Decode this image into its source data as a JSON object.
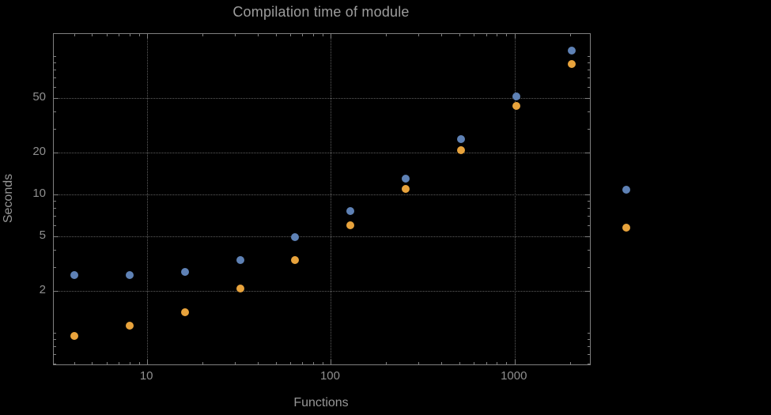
{
  "chart_data": {
    "type": "scatter",
    "title": "Compilation time of module",
    "xlabel": "Functions",
    "ylabel": "Seconds",
    "x_scale": "log",
    "y_scale": "log",
    "grid": "dotted lines at major ticks",
    "x": [
      4,
      8,
      16,
      32,
      64,
      128,
      256,
      512,
      1024,
      2048
    ],
    "series": [
      {
        "name": "series-1-blue",
        "color": "#5e81b5",
        "values": [
          2.6,
          2.6,
          2.75,
          3.35,
          4.9,
          7.6,
          13,
          25,
          51,
          110
        ]
      },
      {
        "name": "series-2-orange",
        "color": "#e8a33c",
        "values": [
          0.95,
          1.12,
          1.4,
          2.1,
          3.35,
          6,
          11,
          21,
          44,
          88
        ]
      }
    ],
    "x_range": [
      3.1,
      2570
    ],
    "y_range": [
      0.59,
      145
    ],
    "x_ticks": [
      {
        "value": 10,
        "label": "10"
      },
      {
        "value": 100,
        "label": "100"
      },
      {
        "value": 1000,
        "label": "1000"
      }
    ],
    "y_ticks": [
      {
        "value": 2,
        "label": "2"
      },
      {
        "value": 5,
        "label": "5"
      },
      {
        "value": 10,
        "label": "10"
      },
      {
        "value": 20,
        "label": "20"
      },
      {
        "value": 50,
        "label": "50"
      }
    ],
    "x_minor_ticks": [
      4,
      5,
      6,
      7,
      8,
      9,
      20,
      30,
      40,
      50,
      60,
      70,
      80,
      90,
      200,
      300,
      400,
      500,
      600,
      700,
      800,
      900,
      2000
    ],
    "y_minor_ticks": [
      0.6,
      0.7,
      0.8,
      0.9,
      1,
      3,
      4,
      6,
      7,
      8,
      9,
      30,
      40,
      60,
      70,
      80,
      90,
      100
    ],
    "legend": {
      "position": "outside-right",
      "items": [
        {
          "color": "#5e81b5",
          "label": ""
        },
        {
          "color": "#e8a33c",
          "label": ""
        }
      ]
    },
    "colors": {
      "background": "#000000",
      "frame": "#7f7f7f",
      "grid": "#5e5e5e",
      "text": "#8f8f8f"
    }
  }
}
